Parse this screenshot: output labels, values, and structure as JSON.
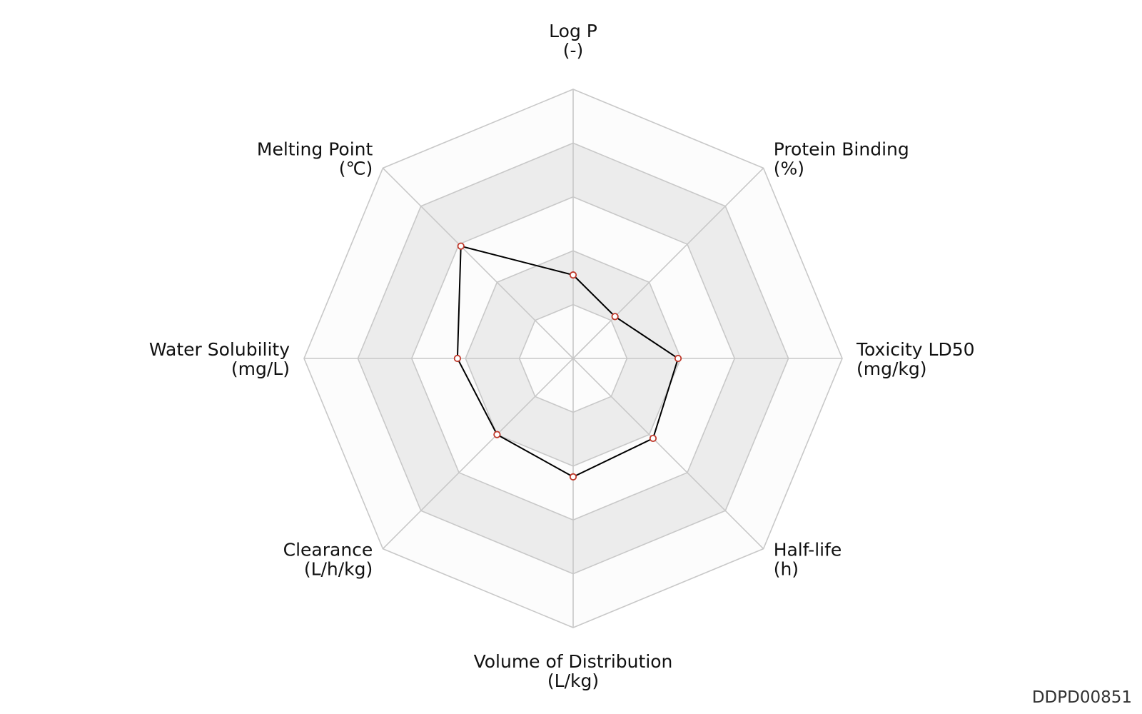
{
  "chart_data": {
    "type": "radar",
    "axes": [
      {
        "name": "Log P",
        "unit": "(-)"
      },
      {
        "name": "Protein Binding",
        "unit": "(%)"
      },
      {
        "name": "Toxicity LD50",
        "unit": "(mg/kg)"
      },
      {
        "name": "Half-life",
        "unit": "(h)"
      },
      {
        "name": "Volume of Distribution",
        "unit": "(L/kg)"
      },
      {
        "name": "Clearance",
        "unit": "(L/h/kg)"
      },
      {
        "name": "Water Solubility",
        "unit": "(mg/L)"
      },
      {
        "name": "Melting Point",
        "unit": "(℃)"
      }
    ],
    "series": [
      {
        "values": [
          0.31,
          0.22,
          0.39,
          0.42,
          0.44,
          0.4,
          0.43,
          0.59
        ]
      }
    ],
    "range": [
      0,
      1
    ],
    "rings": 5,
    "grid": true,
    "colors": {
      "band_light": "#fcfcfc",
      "band_dark": "#ececec",
      "grid_line": "#c8c8c8",
      "series_line": "#000000",
      "marker_edge": "#c0392b",
      "marker_fill": "#ffffff"
    }
  },
  "footer": {
    "id": "DDPD00851"
  }
}
